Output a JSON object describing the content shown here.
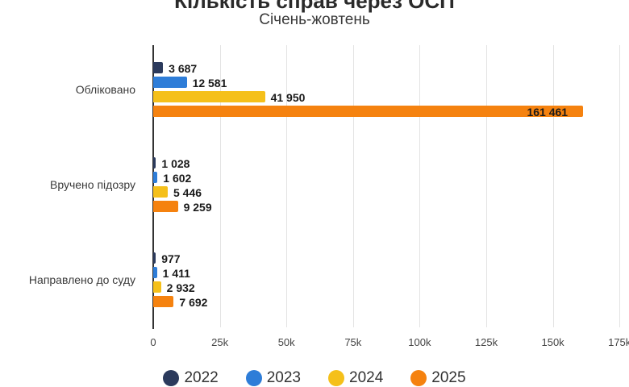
{
  "header": {
    "title": "Кількість справ через ОСП",
    "subtitle": "Січень-жовтень"
  },
  "colors": {
    "2022": "#2b3a5c",
    "2023": "#2e7dd8",
    "2024": "#f5c01a",
    "2025": "#f5820f"
  },
  "axis": {
    "ticks": [
      "0",
      "25k",
      "50k",
      "75k",
      "100k",
      "125k",
      "150k",
      "175k"
    ]
  },
  "categories": [
    {
      "label": "Обліковано",
      "values": [
        "3 687",
        "12 581",
        "41 950",
        "161 461"
      ]
    },
    {
      "label": "Вручено підозру",
      "values": [
        "1 028",
        "1 602",
        "5 446",
        "9 259"
      ]
    },
    {
      "label": "Направлено до суду",
      "values": [
        "977",
        "1 411",
        "2 932",
        "7 692"
      ]
    }
  ],
  "legend": [
    {
      "label": "2022",
      "color": "#2b3a5c"
    },
    {
      "label": "2023",
      "color": "#2e7dd8"
    },
    {
      "label": "2024",
      "color": "#f5c01a"
    },
    {
      "label": "2025",
      "color": "#f5820f"
    }
  ],
  "chart_data": {
    "type": "bar",
    "orientation": "horizontal",
    "title": "Кількість справ через ОСП",
    "subtitle": "Січень-жовтень",
    "categories": [
      "Обліковано",
      "Вручено підозру",
      "Направлено до суду"
    ],
    "series": [
      {
        "name": "2022",
        "color": "#2b3a5c",
        "values": [
          3687,
          1028,
          977
        ]
      },
      {
        "name": "2023",
        "color": "#2e7dd8",
        "values": [
          12581,
          1602,
          1411
        ]
      },
      {
        "name": "2024",
        "color": "#f5c01a",
        "values": [
          41950,
          5446,
          2932
        ]
      },
      {
        "name": "2025",
        "color": "#f5820f",
        "values": [
          161461,
          9259,
          7692
        ]
      }
    ],
    "xlabel": "",
    "ylabel": "",
    "xlim": [
      0,
      175000
    ],
    "xticks": [
      "0",
      "25k",
      "50k",
      "75k",
      "100k",
      "125k",
      "150k",
      "175k"
    ],
    "grid": true,
    "legend_position": "bottom",
    "data_labels": true
  }
}
